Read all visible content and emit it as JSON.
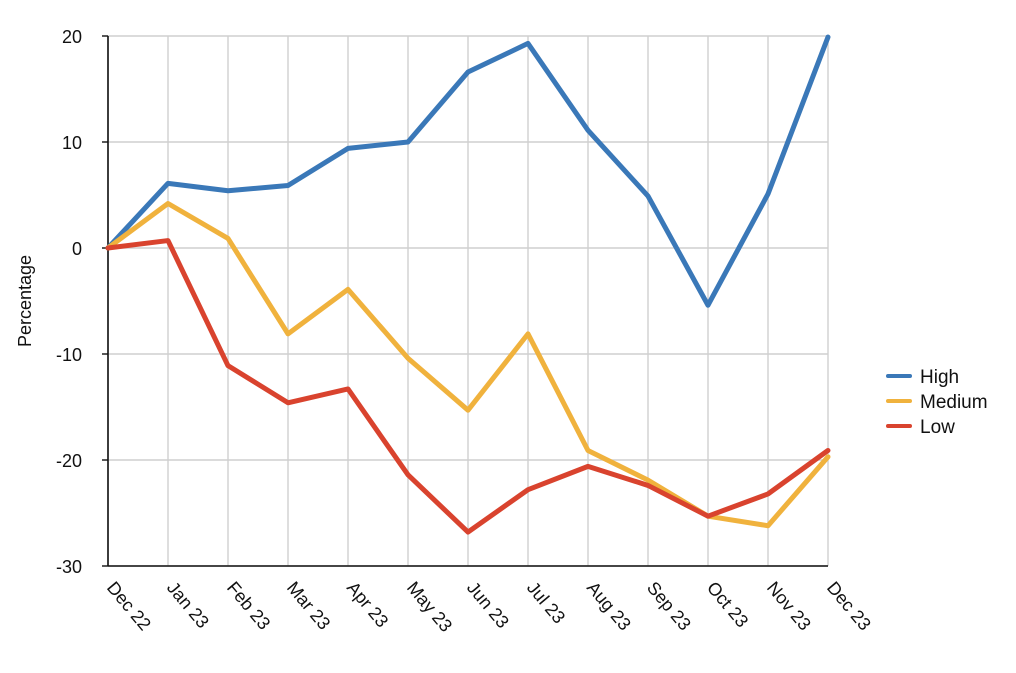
{
  "chart_data": {
    "type": "line",
    "title": "",
    "xlabel": "",
    "ylabel": "Percentage",
    "categories": [
      "Dec 22",
      "Jan 23",
      "Feb 23",
      "Mar 23",
      "Apr 23",
      "May 23",
      "Jun 23",
      "Jul 23",
      "Aug 23",
      "Sep 23",
      "Oct 23",
      "Nov 23",
      "Dec 23"
    ],
    "ylim": [
      -30,
      20
    ],
    "yticks": [
      20,
      10,
      0,
      -10,
      -20,
      -30
    ],
    "ytick_labels": [
      "20",
      "10",
      "0",
      "-10",
      "-20",
      "-30"
    ],
    "grid": true,
    "legend_position": "right",
    "series": [
      {
        "name": "High",
        "color": "#3a78b8",
        "values": [
          0,
          6.1,
          5.4,
          5.9,
          9.4,
          10.0,
          16.6,
          19.3,
          11.1,
          4.9,
          -5.4,
          5.1,
          19.9
        ]
      },
      {
        "name": "Medium",
        "color": "#f0b23d",
        "values": [
          0,
          4.2,
          0.9,
          -8.1,
          -3.9,
          -10.4,
          -15.3,
          -8.1,
          -19.1,
          -21.9,
          -25.3,
          -26.2,
          -19.7
        ]
      },
      {
        "name": "Low",
        "color": "#d9432e",
        "values": [
          0,
          0.7,
          -11.1,
          -14.6,
          -13.3,
          -21.4,
          -26.8,
          -22.8,
          -20.6,
          -22.4,
          -25.3,
          -23.2,
          -19.1
        ]
      }
    ]
  }
}
